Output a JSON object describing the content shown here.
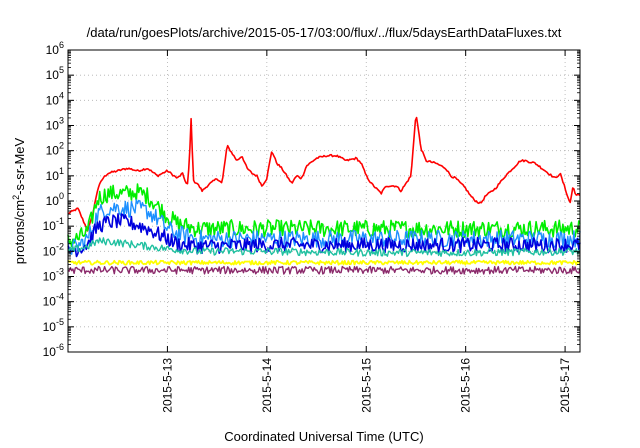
{
  "chart_data": {
    "type": "line",
    "title": "/data/run/goesPlots/archive/2015-05-17/03:00/flux/../flux/5daysEarthDataFluxes.txt",
    "xlabel": "Coordinated Universal Time (UTC)",
    "ylabel": "protons/cm2-s-sr-MeV",
    "y_scale": "log",
    "ylim_exponents": [
      -6,
      6
    ],
    "y_tick_labels": [
      "10-6",
      "10-5",
      "10-4",
      "10-3",
      "10-2",
      "10-1",
      "100",
      "101",
      "102",
      "103",
      "104",
      "105",
      "106"
    ],
    "x_range_days": [
      12.0,
      17.15
    ],
    "x_ticks": [
      {
        "day": 13,
        "label": "2015-5-13"
      },
      {
        "day": 14,
        "label": "2015-5-14"
      },
      {
        "day": 15,
        "label": "2015-5-15"
      },
      {
        "day": 16,
        "label": "2015-5-16"
      },
      {
        "day": 17,
        "label": "2015-5-17"
      }
    ],
    "grid": true,
    "series": [
      {
        "color": "#ff0000",
        "width": 1.6,
        "points": [
          [
            12.0,
            -0.5
          ],
          [
            12.1,
            -0.3
          ],
          [
            12.2,
            -1.2
          ],
          [
            12.25,
            -0.5
          ],
          [
            12.3,
            0.5
          ],
          [
            12.35,
            0.9
          ],
          [
            12.4,
            1.1
          ],
          [
            12.5,
            1.2
          ],
          [
            12.6,
            1.3
          ],
          [
            12.7,
            1.2
          ],
          [
            12.8,
            1.3
          ],
          [
            12.9,
            1.0
          ],
          [
            13.0,
            1.2
          ],
          [
            13.1,
            0.9
          ],
          [
            13.15,
            1.1
          ],
          [
            13.2,
            0.6
          ],
          [
            13.22,
            1.5
          ],
          [
            13.24,
            3.4
          ],
          [
            13.26,
            0.8
          ],
          [
            13.3,
            0.7
          ],
          [
            13.35,
            0.4
          ],
          [
            13.4,
            0.6
          ],
          [
            13.5,
            0.9
          ],
          [
            13.55,
            0.7
          ],
          [
            13.6,
            2.2
          ],
          [
            13.65,
            1.9
          ],
          [
            13.7,
            1.6
          ],
          [
            13.75,
            1.8
          ],
          [
            13.8,
            1.3
          ],
          [
            13.85,
            1.1
          ],
          [
            13.9,
            1.0
          ],
          [
            13.95,
            0.6
          ],
          [
            14.0,
            0.9
          ],
          [
            14.05,
            2.0
          ],
          [
            14.1,
            1.5
          ],
          [
            14.15,
            1.3
          ],
          [
            14.2,
            1.0
          ],
          [
            14.25,
            0.7
          ],
          [
            14.3,
            1.0
          ],
          [
            14.35,
            0.9
          ],
          [
            14.4,
            1.4
          ],
          [
            14.5,
            1.7
          ],
          [
            14.6,
            1.8
          ],
          [
            14.7,
            1.8
          ],
          [
            14.75,
            1.7
          ],
          [
            14.8,
            1.6
          ],
          [
            14.9,
            1.7
          ],
          [
            14.95,
            1.5
          ],
          [
            15.0,
            1.0
          ],
          [
            15.05,
            0.7
          ],
          [
            15.1,
            0.5
          ],
          [
            15.15,
            0.3
          ],
          [
            15.2,
            0.6
          ],
          [
            15.3,
            0.6
          ],
          [
            15.35,
            0.4
          ],
          [
            15.4,
            0.7
          ],
          [
            15.45,
            1.0
          ],
          [
            15.5,
            3.5
          ],
          [
            15.55,
            2.1
          ],
          [
            15.6,
            1.6
          ],
          [
            15.7,
            1.5
          ],
          [
            15.8,
            1.3
          ],
          [
            15.85,
            1.0
          ],
          [
            15.9,
            0.9
          ],
          [
            15.95,
            0.7
          ],
          [
            16.0,
            0.5
          ],
          [
            16.05,
            0.2
          ],
          [
            16.1,
            0.0
          ],
          [
            16.15,
            -0.1
          ],
          [
            16.2,
            0.2
          ],
          [
            16.3,
            0.5
          ],
          [
            16.4,
            1.0
          ],
          [
            16.5,
            1.4
          ],
          [
            16.55,
            1.6
          ],
          [
            16.6,
            1.6
          ],
          [
            16.7,
            1.5
          ],
          [
            16.8,
            1.2
          ],
          [
            16.9,
            0.9
          ],
          [
            16.95,
            1.1
          ],
          [
            17.0,
            0.5
          ],
          [
            17.05,
            -0.1
          ],
          [
            17.08,
            0.6
          ],
          [
            17.1,
            0.3
          ],
          [
            17.15,
            0.2
          ]
        ]
      },
      {
        "color": "#00ee00",
        "width": 1.6,
        "noise": 0.35,
        "points": [
          [
            12.0,
            -1.6
          ],
          [
            12.1,
            -1.5
          ],
          [
            12.2,
            -1.2
          ],
          [
            12.3,
            0.1
          ],
          [
            12.4,
            0.3
          ],
          [
            12.5,
            0.3
          ],
          [
            12.6,
            0.3
          ],
          [
            12.7,
            0.35
          ],
          [
            12.8,
            0.2
          ],
          [
            12.9,
            -0.2
          ],
          [
            13.0,
            -0.6
          ],
          [
            13.1,
            -0.9
          ],
          [
            13.3,
            -1.1
          ],
          [
            14.0,
            -1.1
          ],
          [
            15.0,
            -1.1
          ],
          [
            16.0,
            -1.1
          ],
          [
            17.15,
            -1.1
          ]
        ]
      },
      {
        "color": "#1e90ff",
        "width": 1.4,
        "noise": 0.35,
        "points": [
          [
            12.0,
            -1.9
          ],
          [
            12.1,
            -1.8
          ],
          [
            12.2,
            -1.5
          ],
          [
            12.3,
            -0.5
          ],
          [
            12.4,
            -0.3
          ],
          [
            12.5,
            -0.25
          ],
          [
            12.6,
            -0.3
          ],
          [
            12.7,
            -0.3
          ],
          [
            12.8,
            -0.4
          ],
          [
            12.9,
            -0.7
          ],
          [
            13.0,
            -1.1
          ],
          [
            13.1,
            -1.3
          ],
          [
            13.3,
            -1.5
          ],
          [
            14.0,
            -1.5
          ],
          [
            15.0,
            -1.5
          ],
          [
            16.0,
            -1.5
          ],
          [
            17.15,
            -1.5
          ]
        ]
      },
      {
        "color": "#0000dd",
        "width": 1.6,
        "noise": 0.3,
        "points": [
          [
            12.0,
            -2.0
          ],
          [
            12.1,
            -1.9
          ],
          [
            12.2,
            -1.7
          ],
          [
            12.3,
            -1.0
          ],
          [
            12.4,
            -0.85
          ],
          [
            12.5,
            -0.8
          ],
          [
            12.6,
            -0.85
          ],
          [
            12.7,
            -0.95
          ],
          [
            12.8,
            -1.1
          ],
          [
            12.9,
            -1.3
          ],
          [
            13.0,
            -1.5
          ],
          [
            13.1,
            -1.7
          ],
          [
            13.3,
            -1.8
          ],
          [
            14.0,
            -1.75
          ],
          [
            15.0,
            -1.75
          ],
          [
            16.0,
            -1.75
          ],
          [
            17.15,
            -1.75
          ]
        ]
      },
      {
        "color": "#20c0a0",
        "width": 1.4,
        "noise": 0.15,
        "points": [
          [
            12.0,
            -2.0
          ],
          [
            12.2,
            -1.8
          ],
          [
            12.3,
            -1.6
          ],
          [
            12.4,
            -1.6
          ],
          [
            12.6,
            -1.7
          ],
          [
            12.8,
            -1.8
          ],
          [
            13.0,
            -1.9
          ],
          [
            13.3,
            -2.0
          ],
          [
            14.0,
            -2.0
          ],
          [
            15.0,
            -2.05
          ],
          [
            16.0,
            -2.05
          ],
          [
            17.15,
            -2.0
          ]
        ]
      },
      {
        "color": "#ffff00",
        "width": 1.8,
        "noise": 0.08,
        "points": [
          [
            12.0,
            -2.45
          ],
          [
            13.0,
            -2.45
          ],
          [
            14.0,
            -2.45
          ],
          [
            15.0,
            -2.45
          ],
          [
            16.0,
            -2.45
          ],
          [
            17.15,
            -2.45
          ]
        ]
      },
      {
        "color": "#8b2a6b",
        "width": 1.4,
        "noise": 0.15,
        "points": [
          [
            12.0,
            -2.75
          ],
          [
            13.0,
            -2.75
          ],
          [
            14.0,
            -2.75
          ],
          [
            15.0,
            -2.75
          ],
          [
            16.0,
            -2.75
          ],
          [
            17.15,
            -2.75
          ]
        ]
      }
    ]
  }
}
